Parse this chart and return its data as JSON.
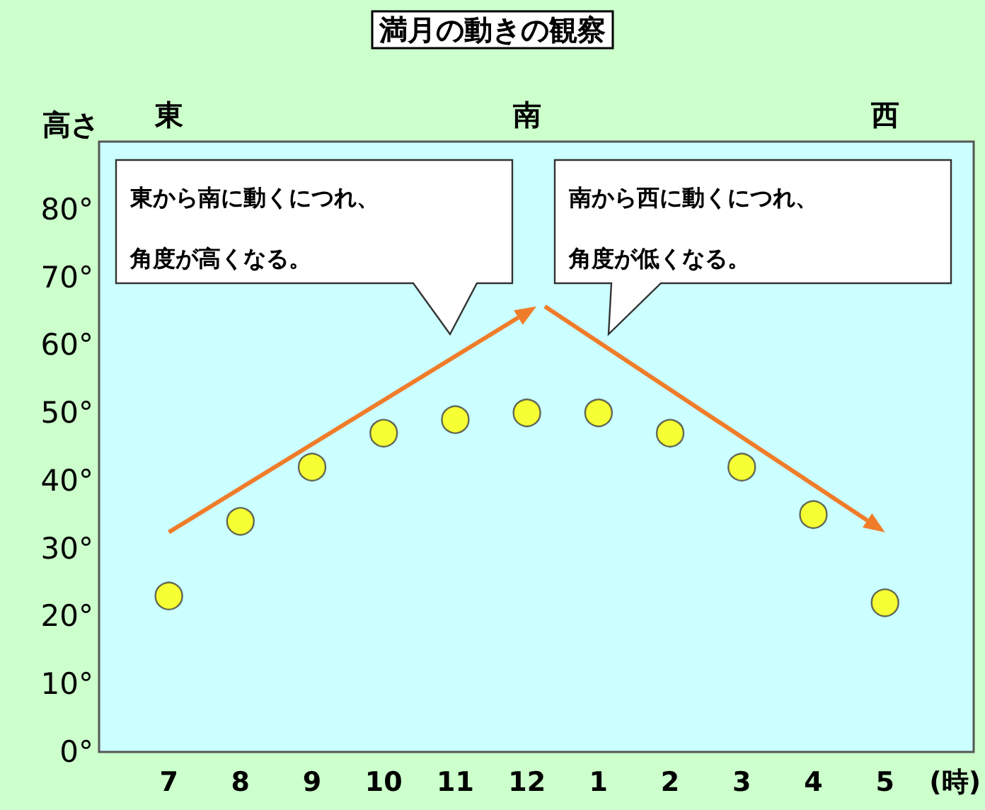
{
  "chart_data": {
    "type": "scatter",
    "title": "満月の動きの観察",
    "ylabel": "高さ",
    "xlabel": "(時)",
    "categories": [
      "7",
      "8",
      "9",
      "10",
      "11",
      "12",
      "1",
      "2",
      "3",
      "4",
      "5"
    ],
    "series": [
      {
        "color": "#ffff00",
        "values": [
          23,
          34,
          42,
          47,
          49,
          50,
          50,
          47,
          42,
          35,
          22
        ]
      }
    ],
    "ylim": [
      0,
      90
    ],
    "yticks": [
      {
        "value": 0,
        "label": "0°"
      },
      {
        "value": 10,
        "label": "10°"
      },
      {
        "value": 20,
        "label": "20°"
      },
      {
        "value": 30,
        "label": "30°"
      },
      {
        "value": 40,
        "label": "40°"
      },
      {
        "value": 50,
        "label": "50°"
      },
      {
        "value": 60,
        "label": "60°"
      },
      {
        "value": 70,
        "label": "70°"
      },
      {
        "value": 80,
        "label": "80°"
      }
    ],
    "marker": "circle",
    "grid": false,
    "annotations": [
      "東",
      "南",
      "西",
      "東から南に動くにつれ、角度が高くなる。",
      "南から西に動くにつれ、角度が低くなる。"
    ]
  }
}
